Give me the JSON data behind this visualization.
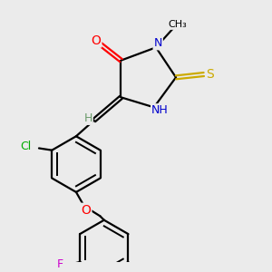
{
  "bg_color": "#ebebeb",
  "atom_colors": {
    "C": "#000000",
    "H": "#6a9a6a",
    "N": "#0000cd",
    "O": "#ff0000",
    "S": "#ccaa00",
    "Cl": "#00aa00",
    "F": "#cc00cc"
  },
  "bond_color": "#000000",
  "figsize": [
    3.0,
    3.0
  ],
  "dpi": 100
}
